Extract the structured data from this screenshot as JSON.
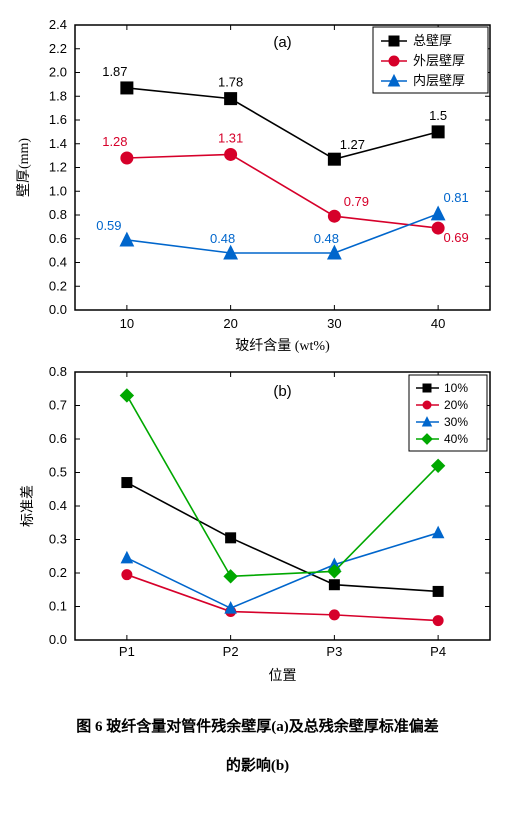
{
  "chartA": {
    "type": "line",
    "panel_label": "(a)",
    "panel_label_fontsize": 15,
    "x": [
      10,
      20,
      30,
      40
    ],
    "xlim": [
      5,
      45
    ],
    "xticks": [
      10,
      20,
      30,
      40
    ],
    "ylim": [
      0.0,
      2.4
    ],
    "yticks": [
      0.0,
      0.2,
      0.4,
      0.6,
      0.8,
      1.0,
      1.2,
      1.4,
      1.6,
      1.8,
      2.0,
      2.2,
      2.4
    ],
    "xlabel": "玻纤含量 (wt%)",
    "ylabel": "壁厚(mm)",
    "label_fontsize": 14,
    "tick_fontsize": 13,
    "background_color": "#ffffff",
    "axis_color": "#000000",
    "series": [
      {
        "name": "总壁厚",
        "marker": "square",
        "color": "#000000",
        "values": [
          1.87,
          1.78,
          1.27,
          1.5
        ],
        "data_labels": [
          "1.87",
          "1.78",
          "1.27",
          "1.5"
        ],
        "label_dy": -12
      },
      {
        "name": "外层壁厚",
        "marker": "circle",
        "color": "#d6002a",
        "values": [
          1.28,
          1.31,
          0.79,
          0.69
        ],
        "data_labels": [
          "1.28",
          "1.31",
          "0.79",
          "0.69"
        ],
        "label_dy": -12
      },
      {
        "name": "内层壁厚",
        "marker": "triangle",
        "color": "#0066cc",
        "values": [
          0.59,
          0.48,
          0.48,
          0.81
        ],
        "data_labels": [
          "0.59",
          "0.48",
          "0.48",
          "0.81"
        ],
        "label_dy": -12
      }
    ],
    "legend": {
      "position": "top-right",
      "fontsize": 13
    },
    "line_width": 1.6,
    "marker_size": 6
  },
  "chartB": {
    "type": "line",
    "panel_label": "(b)",
    "panel_label_fontsize": 15,
    "xcats": [
      "P1",
      "P2",
      "P3",
      "P4"
    ],
    "xlim": [
      0.5,
      4.5
    ],
    "ylim": [
      0.0,
      0.8
    ],
    "yticks": [
      0.0,
      0.1,
      0.2,
      0.3,
      0.4,
      0.5,
      0.6,
      0.7,
      0.8
    ],
    "xlabel": "位置",
    "ylabel": "标准差",
    "label_fontsize": 14,
    "tick_fontsize": 13,
    "background_color": "#ffffff",
    "axis_color": "#000000",
    "series": [
      {
        "name": "10%",
        "marker": "square",
        "color": "#000000",
        "values": [
          0.47,
          0.305,
          0.165,
          0.145
        ]
      },
      {
        "name": "20%",
        "marker": "circle",
        "color": "#d6002a",
        "values": [
          0.195,
          0.085,
          0.075,
          0.058
        ]
      },
      {
        "name": "30%",
        "marker": "triangle",
        "color": "#0066cc",
        "values": [
          0.245,
          0.095,
          0.225,
          0.32
        ]
      },
      {
        "name": "40%",
        "marker": "diamond",
        "color": "#00a800",
        "values": [
          0.73,
          0.19,
          0.205,
          0.52
        ]
      }
    ],
    "legend": {
      "position": "top-right",
      "fontsize": 12
    },
    "line_width": 1.6,
    "marker_size": 5
  },
  "caption": {
    "line1": "图 6  玻纤含量对管件残余壁厚(a)及总残余壁厚标准偏差",
    "line2": "的影响(b)"
  }
}
